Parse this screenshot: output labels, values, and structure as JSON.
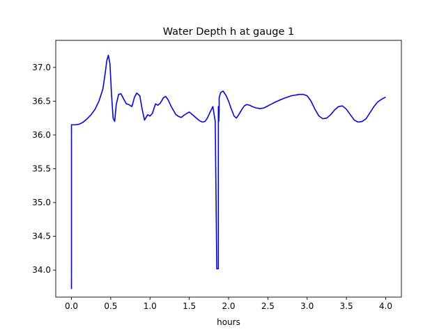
{
  "chart_data": {
    "type": "line",
    "title": "Water Depth h at gauge 1",
    "xlabel": "hours",
    "ylabel": "",
    "xlim": [
      -0.2,
      4.2
    ],
    "ylim": [
      33.6,
      37.4
    ],
    "xticks": [
      0.0,
      0.5,
      1.0,
      1.5,
      2.0,
      2.5,
      3.0,
      3.5,
      4.0
    ],
    "xtick_labels": [
      "0.0",
      "0.5",
      "1.0",
      "1.5",
      "2.0",
      "2.5",
      "3.0",
      "3.5",
      "4.0"
    ],
    "yticks": [
      34.0,
      34.5,
      35.0,
      35.5,
      36.0,
      36.5,
      37.0
    ],
    "ytick_labels": [
      "34.0",
      "34.5",
      "35.0",
      "35.5",
      "36.0",
      "36.5",
      "37.0"
    ],
    "grid": false,
    "series": [
      {
        "color": "#0000ff",
        "x": [
          0.0,
          0.0,
          0.05,
          0.1,
          0.15,
          0.2,
          0.25,
          0.3,
          0.35,
          0.4,
          0.43,
          0.45,
          0.47,
          0.49,
          0.51,
          0.53,
          0.55,
          0.57,
          0.6,
          0.63,
          0.67,
          0.7,
          0.73,
          0.77,
          0.8,
          0.83,
          0.87,
          0.9,
          0.93,
          0.97,
          1.0,
          1.03,
          1.07,
          1.1,
          1.13,
          1.17,
          1.2,
          1.23,
          1.27,
          1.3,
          1.33,
          1.37,
          1.4,
          1.43,
          1.47,
          1.5,
          1.53,
          1.57,
          1.6,
          1.63,
          1.67,
          1.7,
          1.73,
          1.77,
          1.8,
          1.83,
          1.85,
          1.87,
          1.87,
          1.875,
          1.88,
          1.88,
          1.9,
          1.93,
          1.97,
          2.0,
          2.03,
          2.07,
          2.1,
          2.13,
          2.17,
          2.2,
          2.23,
          2.27,
          2.3,
          2.35,
          2.4,
          2.45,
          2.5,
          2.55,
          2.6,
          2.7,
          2.8,
          2.9,
          2.95,
          3.0,
          3.05,
          3.1,
          3.15,
          3.2,
          3.25,
          3.3,
          3.35,
          3.4,
          3.45,
          3.5,
          3.55,
          3.6,
          3.65,
          3.7,
          3.75,
          3.8,
          3.85,
          3.9,
          3.95,
          4.0
        ],
        "y": [
          33.72,
          36.15,
          36.15,
          36.16,
          36.19,
          36.24,
          36.3,
          36.38,
          36.5,
          36.68,
          36.92,
          37.1,
          37.18,
          37.05,
          36.6,
          36.25,
          36.2,
          36.45,
          36.6,
          36.61,
          36.52,
          36.46,
          36.45,
          36.42,
          36.55,
          36.62,
          36.58,
          36.38,
          36.22,
          36.3,
          36.28,
          36.32,
          36.46,
          36.44,
          36.47,
          36.55,
          36.57,
          36.52,
          36.42,
          36.36,
          36.3,
          36.27,
          36.26,
          36.29,
          36.32,
          36.34,
          36.31,
          36.27,
          36.24,
          36.21,
          36.19,
          36.2,
          36.25,
          36.35,
          36.42,
          36.2,
          34.02,
          34.02,
          36.42,
          36.2,
          36.35,
          36.55,
          36.63,
          36.65,
          36.58,
          36.5,
          36.4,
          36.28,
          36.25,
          36.3,
          36.38,
          36.43,
          36.45,
          36.44,
          36.42,
          36.4,
          36.39,
          36.4,
          36.43,
          36.46,
          36.49,
          36.54,
          36.58,
          36.6,
          36.6,
          36.58,
          36.5,
          36.38,
          36.28,
          36.24,
          36.25,
          36.3,
          36.37,
          36.42,
          36.43,
          36.38,
          36.3,
          36.22,
          36.19,
          36.2,
          36.24,
          36.33,
          36.42,
          36.49,
          36.53,
          36.56
        ]
      }
    ]
  }
}
